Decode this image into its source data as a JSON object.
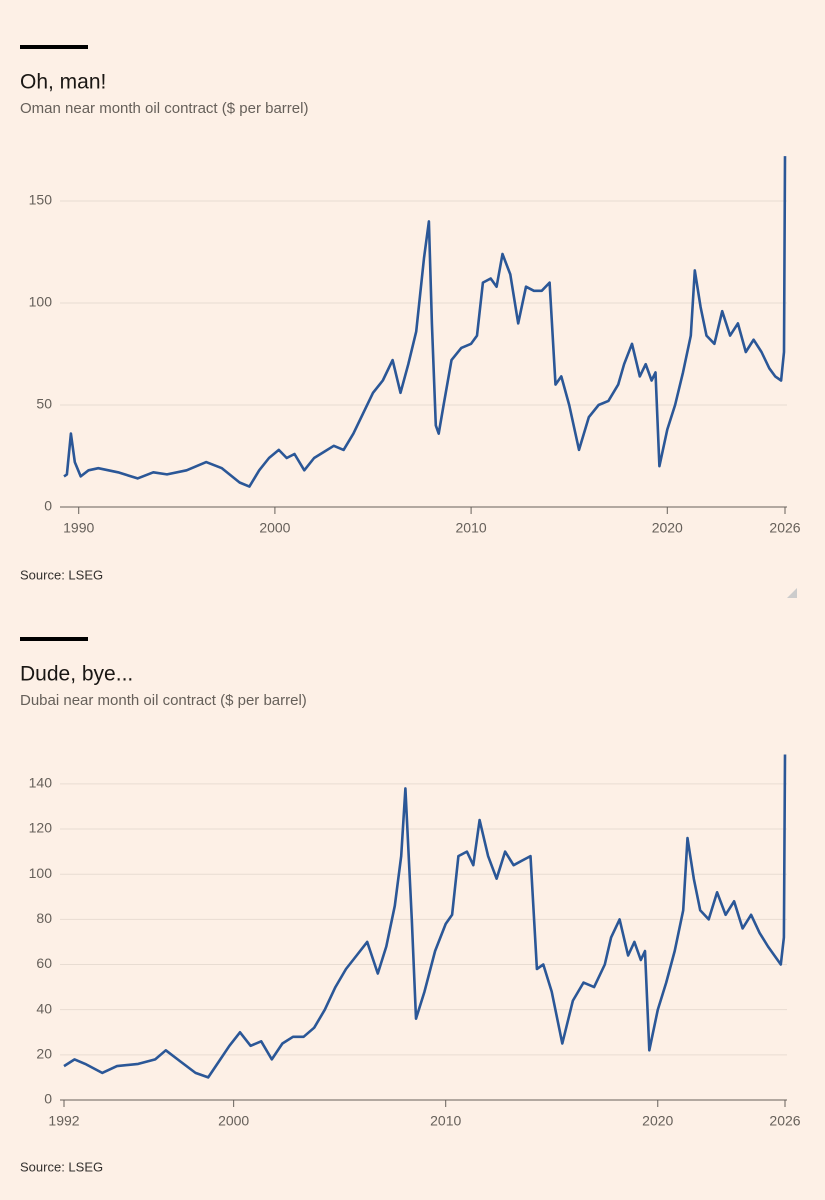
{
  "chart_data": [
    {
      "type": "line",
      "title": "Oh, man!",
      "subtitle": "Oman near month oil contract ($ per barrel)",
      "source": "Source: LSEG",
      "color": "#2b5797",
      "x": [
        1989.25,
        1989.4,
        1989.6,
        1989.8,
        1990.1,
        1990.5,
        1991,
        1992,
        1993,
        1993.8,
        1994.5,
        1995.5,
        1996.5,
        1997.3,
        1998.2,
        1998.7,
        1999.2,
        1999.7,
        2000.2,
        2000.6,
        2001,
        2001.5,
        2002,
        2002.5,
        2003,
        2003.5,
        2004,
        2004.5,
        2005,
        2005.5,
        2006,
        2006.4,
        2006.8,
        2007.2,
        2007.6,
        2007.85,
        2008.0,
        2008.2,
        2008.35,
        2008.6,
        2009,
        2009.5,
        2010,
        2010.3,
        2010.6,
        2011,
        2011.3,
        2011.6,
        2012,
        2012.4,
        2012.8,
        2013.2,
        2013.6,
        2014.0,
        2014.3,
        2014.6,
        2015,
        2015.5,
        2016,
        2016.5,
        2017,
        2017.5,
        2017.8,
        2018.2,
        2018.6,
        2018.9,
        2019.2,
        2019.4,
        2019.6,
        2020,
        2020.4,
        2020.8,
        2021.2,
        2021.4,
        2021.7,
        2022,
        2022.4,
        2022.8,
        2023.2,
        2023.6,
        2024,
        2024.4,
        2024.8,
        2025.2,
        2025.5,
        2025.8,
        2025.95,
        2026
      ],
      "values": [
        15,
        16,
        36,
        22,
        15,
        18,
        19,
        17,
        14,
        17,
        16,
        18,
        22,
        19,
        12,
        10,
        18,
        24,
        28,
        24,
        26,
        18,
        24,
        27,
        30,
        28,
        36,
        46,
        56,
        62,
        72,
        56,
        70,
        86,
        122,
        140,
        90,
        40,
        36,
        50,
        72,
        78,
        80,
        84,
        110,
        112,
        108,
        124,
        114,
        90,
        108,
        106,
        106,
        110,
        60,
        64,
        50,
        28,
        44,
        50,
        52,
        60,
        70,
        80,
        64,
        70,
        62,
        66,
        20,
        38,
        50,
        66,
        84,
        116,
        98,
        84,
        80,
        96,
        84,
        90,
        76,
        82,
        76,
        68,
        64,
        62,
        76,
        172
      ],
      "xlim": [
        1989.25,
        2026
      ],
      "xticks": [
        1990,
        2000,
        2010,
        2020,
        2026
      ],
      "ylim": [
        0,
        175
      ],
      "yticks": [
        0,
        50,
        100,
        150
      ],
      "grid": true
    },
    {
      "type": "line",
      "title": "Dude, bye...",
      "subtitle": "Dubai near month oil contract ($ per barrel)",
      "source": "Source: LSEG",
      "color": "#2b5797",
      "x": [
        1992,
        1992.5,
        1993,
        1993.8,
        1994.5,
        1995.5,
        1996.3,
        1996.8,
        1997.5,
        1998.2,
        1998.8,
        1999.3,
        1999.8,
        2000.3,
        2000.8,
        2001.3,
        2001.8,
        2002.3,
        2002.8,
        2003.3,
        2003.8,
        2004.3,
        2004.8,
        2005.3,
        2005.8,
        2006.3,
        2006.8,
        2007.2,
        2007.6,
        2007.9,
        2008.1,
        2008.4,
        2008.6,
        2009,
        2009.5,
        2010,
        2010.3,
        2010.6,
        2011,
        2011.3,
        2011.6,
        2012,
        2012.4,
        2012.8,
        2013.2,
        2013.6,
        2014.0,
        2014.3,
        2014.6,
        2015,
        2015.5,
        2016,
        2016.5,
        2017,
        2017.5,
        2017.8,
        2018.2,
        2018.6,
        2018.9,
        2019.2,
        2019.4,
        2019.6,
        2020,
        2020.4,
        2020.8,
        2021.2,
        2021.4,
        2021.7,
        2022,
        2022.4,
        2022.8,
        2023.2,
        2023.6,
        2024,
        2024.4,
        2024.8,
        2025.2,
        2025.5,
        2025.8,
        2025.95,
        2026
      ],
      "values": [
        15,
        18,
        16,
        12,
        15,
        16,
        18,
        22,
        17,
        12,
        10,
        17,
        24,
        30,
        24,
        26,
        18,
        25,
        28,
        28,
        32,
        40,
        50,
        58,
        64,
        70,
        56,
        68,
        86,
        108,
        138,
        80,
        36,
        48,
        66,
        78,
        82,
        108,
        110,
        104,
        124,
        108,
        98,
        110,
        104,
        106,
        108,
        58,
        60,
        48,
        25,
        44,
        52,
        50,
        60,
        72,
        80,
        64,
        70,
        62,
        66,
        22,
        40,
        52,
        66,
        84,
        116,
        98,
        84,
        80,
        92,
        82,
        88,
        76,
        82,
        74,
        68,
        64,
        60,
        72,
        153
      ],
      "xlim": [
        1992,
        2026
      ],
      "xticks": [
        1992,
        2000,
        2010,
        2020,
        2026
      ],
      "ylim": [
        0,
        155
      ],
      "yticks": [
        0,
        20,
        40,
        60,
        80,
        100,
        120,
        140
      ],
      "grid": true
    }
  ]
}
